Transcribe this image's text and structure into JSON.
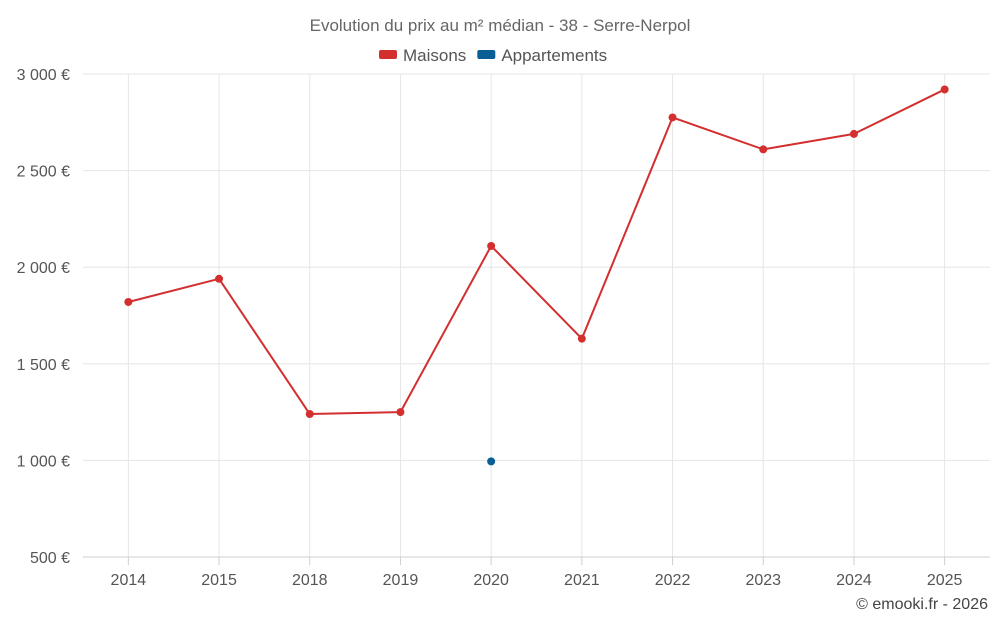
{
  "chart_data": {
    "type": "line",
    "title": "Evolution du prix au m² médian - 38 - Serre-Nerpol",
    "categories": [
      "2014",
      "2015",
      "2018",
      "2019",
      "2020",
      "2021",
      "2022",
      "2023",
      "2024",
      "2025"
    ],
    "y_ticks": [
      500,
      1000,
      1500,
      2000,
      2500,
      3000
    ],
    "y_tick_labels": [
      "500 €",
      "1 000 €",
      "1 500 €",
      "2 000 €",
      "2 500 €",
      "3 000 €"
    ],
    "ylim": [
      500,
      3000
    ],
    "xlabel": "",
    "ylabel": "",
    "grid": true,
    "legend_position": "top-center",
    "series": [
      {
        "name": "Maisons",
        "color": "#d32f2f",
        "values": [
          1820,
          1940,
          1240,
          1250,
          2110,
          1630,
          2775,
          2610,
          2690,
          2920
        ]
      },
      {
        "name": "Appartements",
        "color": "#0a5e96",
        "values": [
          null,
          null,
          null,
          null,
          995,
          null,
          null,
          null,
          null,
          null
        ]
      }
    ]
  },
  "credit": "© emooki.fr - 2026"
}
